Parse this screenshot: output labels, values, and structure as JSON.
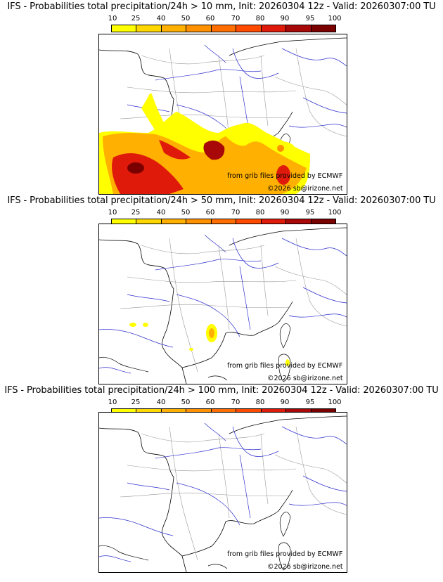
{
  "colorbar": {
    "ticks": [
      "10",
      "25",
      "40",
      "50",
      "60",
      "70",
      "80",
      "90",
      "95",
      "100"
    ],
    "colors": [
      "#ffff00",
      "#ffd700",
      "#ffb000",
      "#ff9000",
      "#ff6e00",
      "#ff4a00",
      "#e01a0a",
      "#a80808",
      "#7a0000"
    ]
  },
  "panels": [
    {
      "title": "IFS - Probabilities total precipitation/24h > 10 mm, Init: 20260304 12z - Valid: 20260307:00 TU"
    },
    {
      "title": "IFS - Probabilities total precipitation/24h > 50 mm, Init: 20260304 12z - Valid: 20260307:00 TU"
    },
    {
      "title": "IFS - Probabilities total precipitation/24h > 100 mm, Init: 20260304 12z - Valid: 20260307:00 TU"
    }
  ],
  "credit": {
    "source": "from grib files provided by ECMWF",
    "copyright": "©2026 sb@irizone.net"
  }
}
